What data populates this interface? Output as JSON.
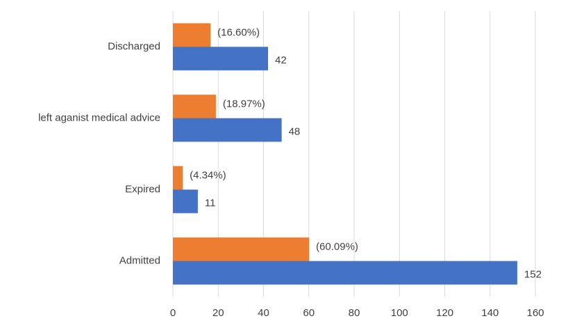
{
  "chart_data": {
    "type": "bar",
    "orientation": "horizontal",
    "categories": [
      "Discharged",
      "left aganist medical advice",
      "Expired",
      "Admitted"
    ],
    "series": [
      {
        "color": "#ed7d31",
        "values": [
          16.6,
          18.97,
          4.34,
          60.09
        ],
        "value_labels": [
          "(16.60%)",
          "(18.97%)",
          "(4.34%)",
          "(60.09%)"
        ]
      },
      {
        "color": "#4472c4",
        "values": [
          42,
          48,
          11,
          152
        ]
      }
    ],
    "xlim": [
      0,
      160
    ],
    "xticks": [
      0,
      20,
      40,
      60,
      80,
      100,
      120,
      140,
      160
    ],
    "grid": true
  }
}
